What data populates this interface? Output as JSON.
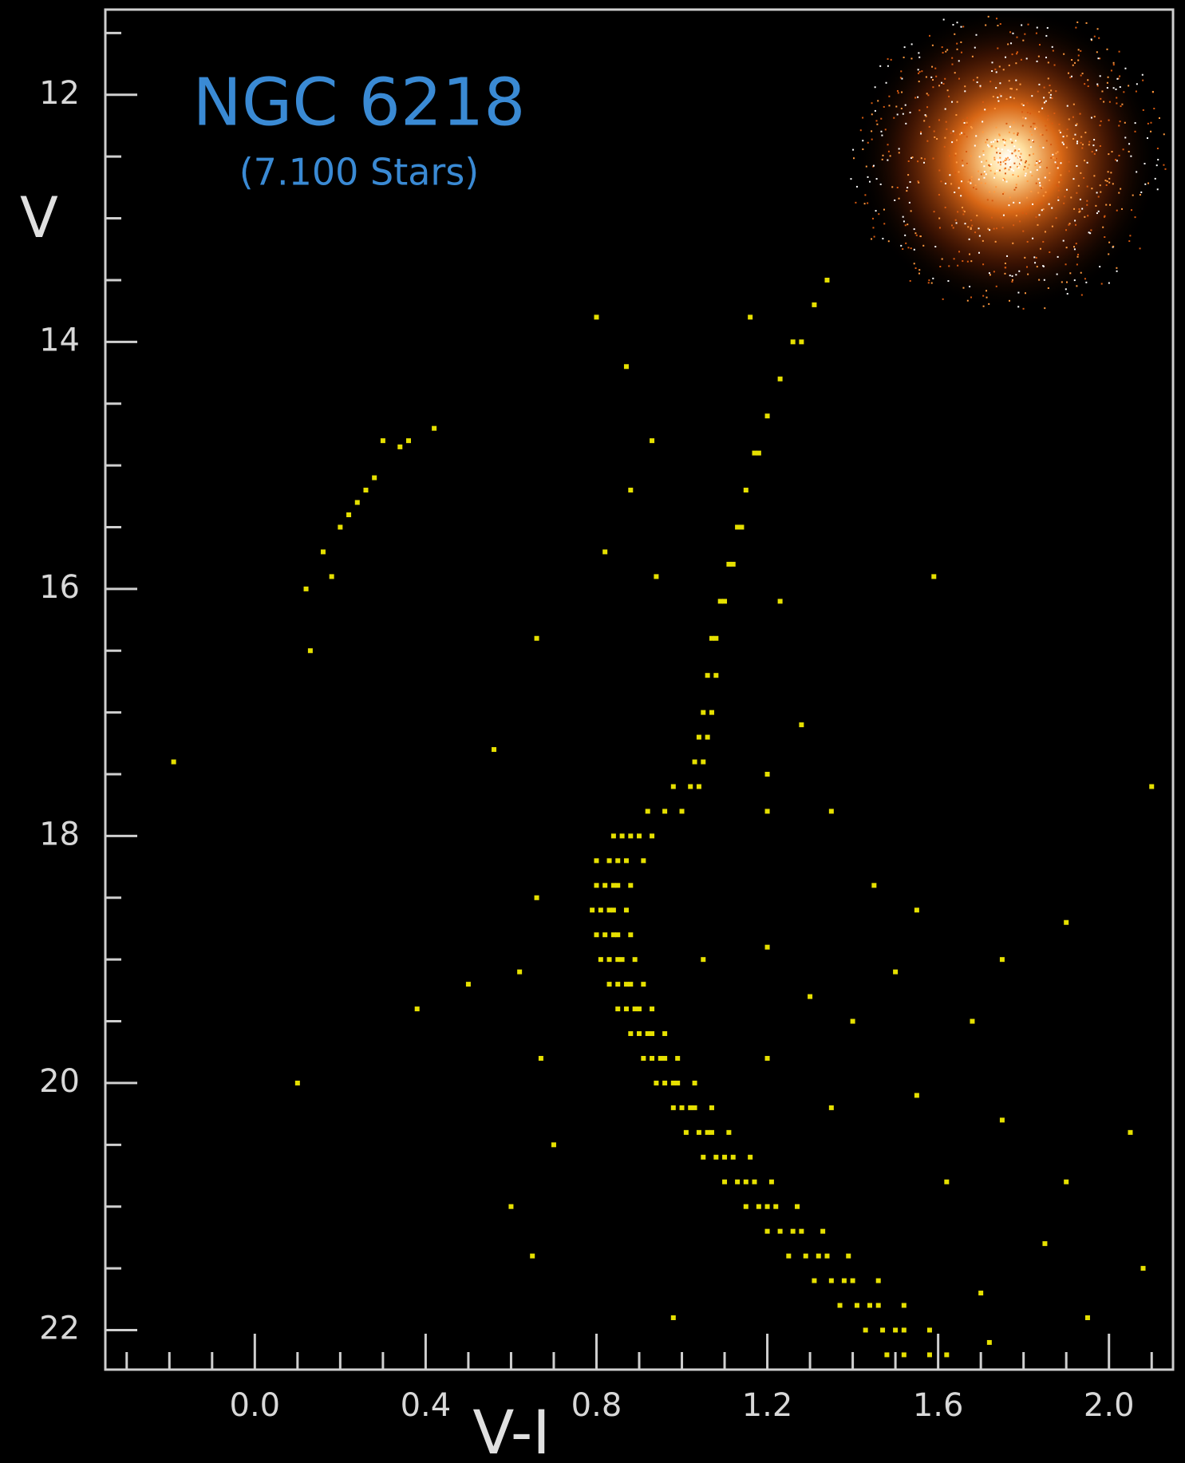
{
  "chart_data": {
    "type": "scatter",
    "title": "NGC 6218",
    "subtitle": "(7.100 Stars)",
    "x_label": "V-I",
    "y_label": "V",
    "color": "#e6e000",
    "xlim": [
      -0.35,
      2.15
    ],
    "ylim": [
      22.32,
      11.31
    ],
    "xticks": [
      {
        "value": 0,
        "label": "0.0"
      },
      0.4,
      0.8,
      1.2,
      1.6,
      {
        "value": 2,
        "label": "2.0"
      }
    ],
    "yticks": [
      12,
      14,
      16,
      18,
      20,
      22
    ],
    "x": [
      0.86,
      0.9,
      0.84,
      0.93,
      0.88,
      0.83,
      0.87,
      0.85,
      0.91,
      0.8,
      0.82,
      0.85,
      0.8,
      0.88,
      0.84,
      0.81,
      0.84,
      0.83,
      0.87,
      0.79,
      0.82,
      0.85,
      0.8,
      0.88,
      0.84,
      0.83,
      0.86,
      0.81,
      0.89,
      0.85,
      0.85,
      0.88,
      0.83,
      0.91,
      0.87,
      0.87,
      0.9,
      0.85,
      0.93,
      0.89,
      0.9,
      0.93,
      0.88,
      0.96,
      0.92,
      0.93,
      0.96,
      0.91,
      0.99,
      0.95,
      0.96,
      0.99,
      0.94,
      1.03,
      0.98,
      1.0,
      1.03,
      0.98,
      1.07,
      1.02,
      1.04,
      1.07,
      1.01,
      1.11,
      1.06,
      1.08,
      1.12,
      1.05,
      1.16,
      1.1,
      1.13,
      1.17,
      1.1,
      1.21,
      1.15,
      1.18,
      1.22,
      1.15,
      1.27,
      1.2,
      1.23,
      1.28,
      1.2,
      1.33,
      1.26,
      1.29,
      1.34,
      1.25,
      1.39,
      1.32,
      1.35,
      1.4,
      1.31,
      1.46,
      1.38,
      1.41,
      1.46,
      1.37,
      1.52,
      1.44,
      1.47,
      1.52,
      1.43,
      1.58,
      1.5,
      1.52,
      1.58,
      1.48,
      1.62,
      0.92,
      0.96,
      1.0,
      0.98,
      1.02,
      1.04,
      1.03,
      1.05,
      1.04,
      1.06,
      1.05,
      1.07,
      1.06,
      1.08,
      1.08,
      1.07,
      1.1,
      1.09,
      1.11,
      1.12,
      1.13,
      1.14,
      1.15,
      1.17,
      1.18,
      1.2,
      1.23,
      1.26,
      1.28,
      1.16,
      1.31,
      1.34,
      0.13,
      0.12,
      0.16,
      0.2,
      0.24,
      0.28,
      0.3,
      0.36,
      0.42,
      0.18,
      0.22,
      0.26,
      0.34,
      0.8,
      0.87,
      0.93,
      0.88,
      0.82,
      0.94,
      0.66,
      1.23,
      1.59,
      1.28,
      0.56,
      -0.19,
      1.2,
      1.2,
      1.35,
      2.1,
      0.66,
      1.45,
      1.55,
      1.9,
      0.5,
      0.62,
      1.05,
      1.2,
      1.3,
      1.5,
      1.75,
      1.68,
      1.4,
      1.2,
      0.67,
      1.35,
      1.55,
      1.75,
      0.7,
      1.62,
      1.9,
      2.05,
      0.6,
      0.65,
      1.85,
      2.08,
      1.7,
      1.95,
      0.1,
      0.38,
      0.98,
      1.72
    ],
    "values": [
      18.0,
      18.0,
      18.0,
      18.0,
      18.0,
      18.2,
      18.2,
      18.2,
      18.2,
      18.2,
      18.4,
      18.4,
      18.4,
      18.4,
      18.4,
      18.6,
      18.6,
      18.6,
      18.6,
      18.6,
      18.8,
      18.8,
      18.8,
      18.8,
      18.8,
      19.0,
      19.0,
      19.0,
      19.0,
      19.0,
      19.2,
      19.2,
      19.2,
      19.2,
      19.2,
      19.4,
      19.4,
      19.4,
      19.4,
      19.4,
      19.6,
      19.6,
      19.6,
      19.6,
      19.6,
      19.8,
      19.8,
      19.8,
      19.8,
      19.8,
      20.0,
      20.0,
      20.0,
      20.0,
      20.0,
      20.2,
      20.2,
      20.2,
      20.2,
      20.2,
      20.4,
      20.4,
      20.4,
      20.4,
      20.4,
      20.6,
      20.6,
      20.6,
      20.6,
      20.6,
      20.8,
      20.8,
      20.8,
      20.8,
      20.8,
      21.0,
      21.0,
      21.0,
      21.0,
      21.0,
      21.2,
      21.2,
      21.2,
      21.2,
      21.2,
      21.4,
      21.4,
      21.4,
      21.4,
      21.4,
      21.6,
      21.6,
      21.6,
      21.6,
      21.6,
      21.8,
      21.8,
      21.8,
      21.8,
      21.8,
      22.0,
      22.0,
      22.0,
      22.0,
      22.0,
      22.2,
      22.2,
      22.2,
      22.2,
      17.8,
      17.8,
      17.8,
      17.6,
      17.6,
      17.6,
      17.4,
      17.4,
      17.2,
      17.2,
      17.0,
      17.0,
      16.7,
      16.7,
      16.4,
      16.4,
      16.1,
      16.1,
      15.8,
      15.8,
      15.5,
      15.5,
      15.2,
      14.9,
      14.9,
      14.6,
      14.3,
      14.0,
      14.0,
      13.8,
      13.7,
      13.5,
      16.5,
      16.0,
      15.7,
      15.5,
      15.3,
      15.1,
      14.8,
      14.8,
      14.7,
      15.9,
      15.4,
      15.2,
      14.85,
      13.8,
      14.2,
      14.8,
      15.2,
      15.7,
      15.9,
      16.4,
      16.1,
      15.9,
      17.1,
      17.3,
      17.4,
      17.5,
      17.8,
      17.8,
      17.6,
      18.5,
      18.4,
      18.6,
      18.7,
      19.2,
      19.1,
      19.0,
      18.9,
      19.3,
      19.1,
      19.0,
      19.5,
      19.5,
      19.8,
      19.8,
      20.2,
      20.1,
      20.3,
      20.5,
      20.8,
      20.8,
      20.4,
      21.0,
      21.4,
      21.3,
      21.5,
      21.7,
      21.9,
      20.0,
      19.4,
      21.9,
      22.1
    ]
  }
}
